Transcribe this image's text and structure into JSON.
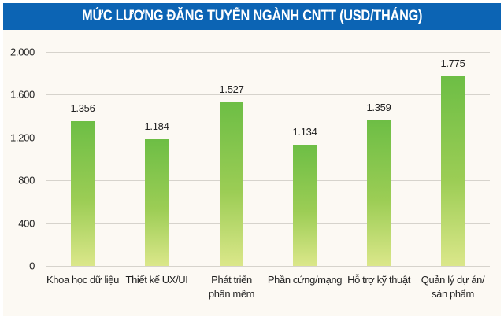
{
  "header": {
    "title": "MỨC LƯƠNG ĐĂNG TUYỂN NGÀNH CNTT (USD/THÁNG)"
  },
  "y_axis": {
    "ticks": [
      "2.000",
      "1.600",
      "1.200",
      "800",
      "400",
      "0"
    ]
  },
  "bars": [
    {
      "label": "Khoa học dữ liệu",
      "label_line2": "",
      "value_label": "1.356"
    },
    {
      "label": "Thiết kế UX/UI",
      "label_line2": "",
      "value_label": "1.184"
    },
    {
      "label": "Phát triển",
      "label_line2": "phần mềm",
      "value_label": "1.527"
    },
    {
      "label": "Phần cứng/mạng",
      "label_line2": "",
      "value_label": "1.134"
    },
    {
      "label": "Hỗ trợ kỹ thuật",
      "label_line2": "",
      "value_label": "1.359"
    },
    {
      "label": "Quản lý dự án/",
      "label_line2": "sản phẩm",
      "value_label": "1.775"
    }
  ],
  "colors": {
    "header_bg": "#0c64b4",
    "bar_top": "#6dbe45",
    "bar_bottom": "#dbe78a",
    "background": "#fcf9f3"
  },
  "chart_data": {
    "type": "bar",
    "title": "MỨC LƯƠNG ĐĂNG TUYỂN NGÀNH CNTT (USD/THÁNG)",
    "categories": [
      "Khoa học dữ liệu",
      "Thiết kế UX/UI",
      "Phát triển phần mềm",
      "Phần cứng/mạng",
      "Hỗ trợ kỹ thuật",
      "Quản lý dự án/sản phẩm"
    ],
    "values": [
      1356,
      1184,
      1527,
      1134,
      1359,
      1775
    ],
    "xlabel": "",
    "ylabel": "USD/tháng",
    "ylim": [
      0,
      2000
    ],
    "yticks": [
      0,
      400,
      800,
      1200,
      1600,
      2000
    ],
    "grid": true,
    "legend": null,
    "data_labels": true
  }
}
